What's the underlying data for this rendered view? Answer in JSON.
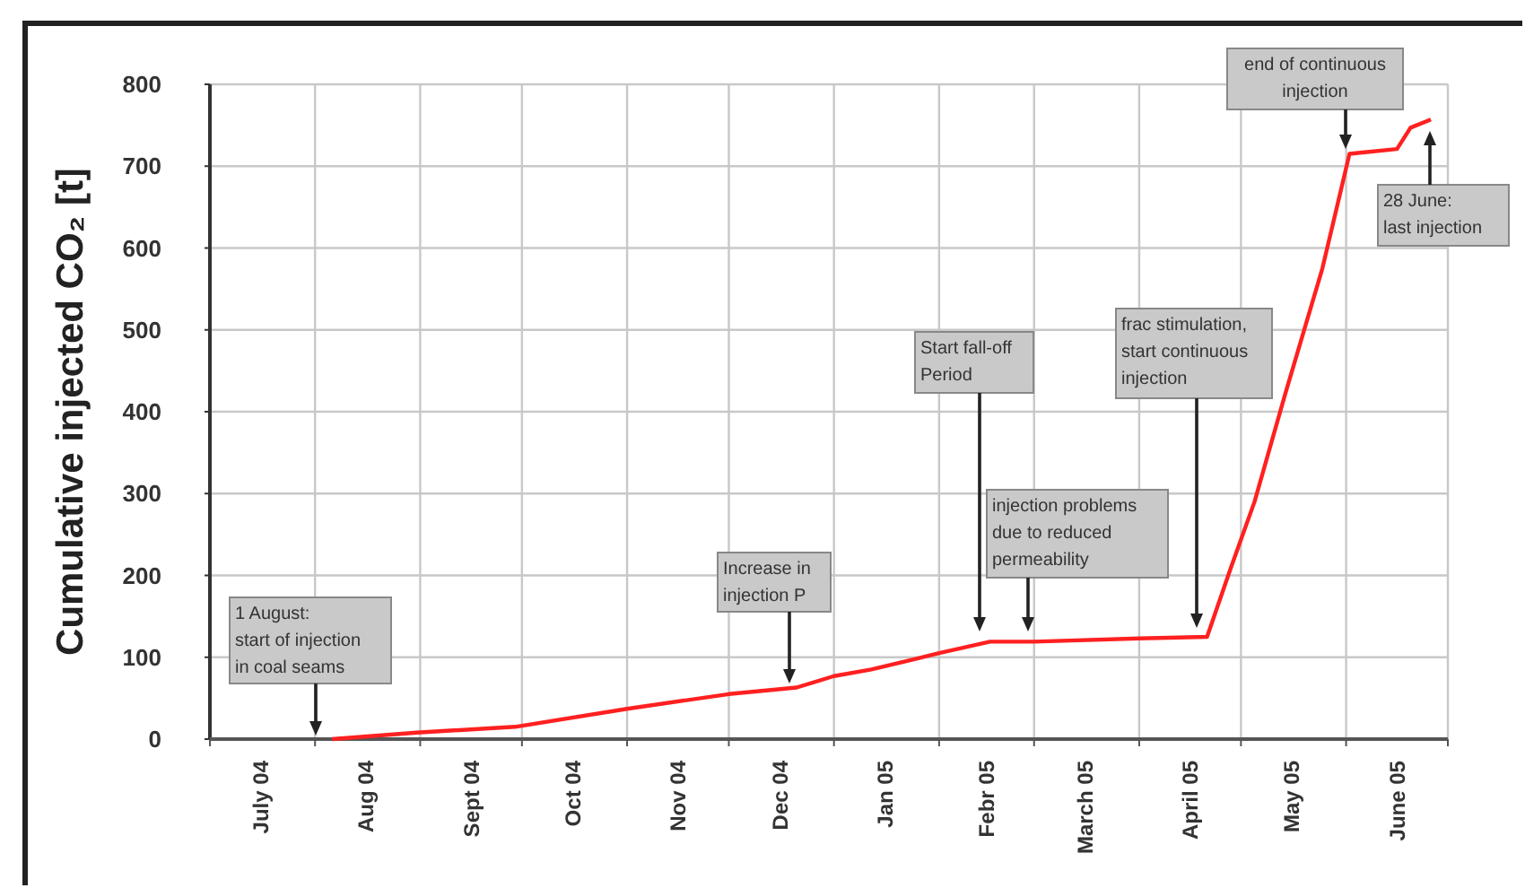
{
  "chart_data": {
    "type": "line",
    "ylabel": "Cumulative injected CO₂ [t]",
    "xlim": [
      "2004-07-01",
      "2005-07-01"
    ],
    "xticks": [
      {
        "value": "2004-07-01",
        "label": null
      },
      {
        "value": "2004-08-01",
        "label": null
      },
      {
        "value": "2004-09-01",
        "label": null
      },
      {
        "value": "2004-10-01",
        "label": null
      },
      {
        "value": "2004-11-01",
        "label": null
      },
      {
        "value": "2004-12-01",
        "label": null
      },
      {
        "value": "2005-01-01",
        "label": null
      },
      {
        "value": "2005-02-01",
        "label": null
      },
      {
        "value": "2005-03-01",
        "label": null
      },
      {
        "value": "2005-04-01",
        "label": null
      },
      {
        "value": "2005-05-01",
        "label": null
      },
      {
        "value": "2005-06-01",
        "label": null
      },
      {
        "value": "2005-07-01",
        "label": null
      },
      {
        "value": "2004-07-16",
        "label": "July 04"
      },
      {
        "value": "2004-08-16",
        "label": "Aug 04"
      },
      {
        "value": "2004-09-16",
        "label": "Sept 04"
      },
      {
        "value": "2004-10-16",
        "label": "Oct 04"
      },
      {
        "value": "2004-11-16",
        "label": "Nov 04"
      },
      {
        "value": "2004-12-16",
        "label": "Dec 04"
      },
      {
        "value": "2005-01-16",
        "label": "Jan 05"
      },
      {
        "value": "2005-02-15",
        "label": "Febr 05"
      },
      {
        "value": "2005-03-16",
        "label": "March 05"
      },
      {
        "value": "2005-04-16",
        "label": "April 05"
      },
      {
        "value": "2005-05-16",
        "label": "May 05"
      },
      {
        "value": "2005-06-16",
        "label": "June 05"
      }
    ],
    "ylim": [
      0,
      800
    ],
    "yticks": [
      0,
      100,
      200,
      300,
      400,
      500,
      600,
      700,
      800
    ],
    "grid": true,
    "series": [
      {
        "color": "#ff2020",
        "x": [
          "2004-08-06",
          "2004-08-31",
          "2004-09-29",
          "2004-11-01",
          "2004-12-01",
          "2004-12-21",
          "2005-01-01",
          "2005-01-12",
          "2005-02-01",
          "2005-02-16",
          "2005-03-01",
          "2005-04-01",
          "2005-04-21",
          "2005-04-28",
          "2005-05-05",
          "2005-05-14",
          "2005-05-25",
          "2005-06-02",
          "2005-06-16",
          "2005-06-20",
          "2005-06-26"
        ],
        "values": [
          0,
          8,
          15,
          37,
          55,
          63,
          77,
          85,
          105,
          119,
          119,
          123,
          125,
          209,
          290,
          421,
          575,
          715,
          721,
          747,
          757
        ]
      }
    ],
    "annotations": [
      "1 August:\nstart of injection\nin coal seams",
      "Increase in\ninjection P",
      "Start fall-off\nPeriod",
      "injection problems\ndue to reduced\npermeability",
      "frac stimulation,\nstart continuous\ninjection",
      "end of continuous\ninjection",
      "28 June:\nlast injection"
    ]
  }
}
